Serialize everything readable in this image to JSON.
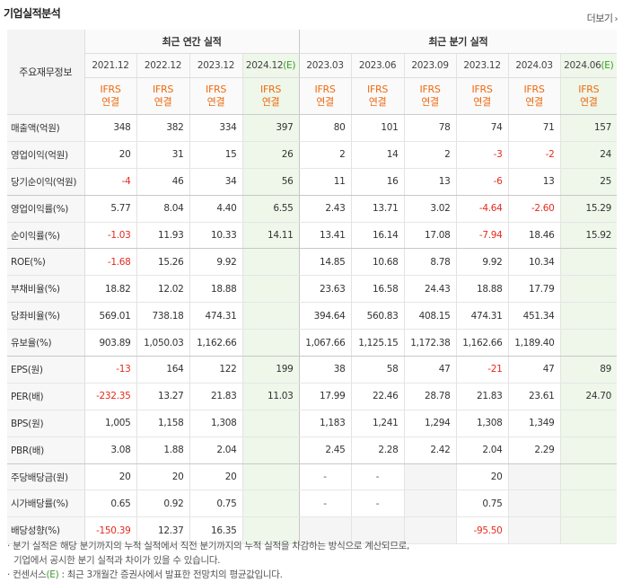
{
  "title": "기업실적분석",
  "more_label": "더보기",
  "header": {
    "row_label": "주요재무정보",
    "annual_group": "최근 연간 실적",
    "quarter_group": "최근 분기 실적",
    "annual_periods": [
      "2021.12",
      "2022.12",
      "2023.12",
      "2024.12"
    ],
    "quarter_periods": [
      "2023.03",
      "2023.06",
      "2023.09",
      "2023.12",
      "2024.03",
      "2024.06"
    ],
    "estimate_mark": "(E)",
    "ifrs_line1": "IFRS",
    "ifrs_line2": "연결"
  },
  "rows": [
    {
      "label": "매출액(억원)",
      "annual": [
        "348",
        "382",
        "334",
        "397"
      ],
      "quarter": [
        "80",
        "101",
        "78",
        "74",
        "71",
        "157"
      ]
    },
    {
      "label": "영업이익(억원)",
      "annual": [
        "20",
        "31",
        "15",
        "26"
      ],
      "quarter": [
        "2",
        "14",
        "2",
        "-3",
        "-2",
        "24"
      ]
    },
    {
      "label": "당기순이익(억원)",
      "annual": [
        "-4",
        "46",
        "34",
        "56"
      ],
      "quarter": [
        "11",
        "16",
        "13",
        "-6",
        "13",
        "25"
      ]
    },
    {
      "label": "영업이익률(%)",
      "annual": [
        "5.77",
        "8.04",
        "4.40",
        "6.55"
      ],
      "quarter": [
        "2.43",
        "13.71",
        "3.02",
        "-4.64",
        "-2.60",
        "15.29"
      ]
    },
    {
      "label": "순이익률(%)",
      "annual": [
        "-1.03",
        "11.93",
        "10.33",
        "14.11"
      ],
      "quarter": [
        "13.41",
        "16.14",
        "17.08",
        "-7.94",
        "18.46",
        "15.92"
      ]
    },
    {
      "label": "ROE(%)",
      "annual": [
        "-1.68",
        "15.26",
        "9.92",
        ""
      ],
      "quarter": [
        "14.85",
        "10.68",
        "8.78",
        "9.92",
        "10.34",
        ""
      ]
    },
    {
      "label": "부채비율(%)",
      "annual": [
        "18.82",
        "12.02",
        "18.88",
        ""
      ],
      "quarter": [
        "23.63",
        "16.58",
        "24.43",
        "18.88",
        "17.79",
        ""
      ]
    },
    {
      "label": "당좌비율(%)",
      "annual": [
        "569.01",
        "738.18",
        "474.31",
        ""
      ],
      "quarter": [
        "394.64",
        "560.83",
        "408.15",
        "474.31",
        "451.34",
        ""
      ]
    },
    {
      "label": "유보율(%)",
      "annual": [
        "903.89",
        "1,050.03",
        "1,162.66",
        ""
      ],
      "quarter": [
        "1,067.66",
        "1,125.15",
        "1,172.38",
        "1,162.66",
        "1,189.40",
        ""
      ]
    },
    {
      "label": "EPS(원)",
      "annual": [
        "-13",
        "164",
        "122",
        "199"
      ],
      "quarter": [
        "38",
        "58",
        "47",
        "-21",
        "47",
        "89"
      ]
    },
    {
      "label": "PER(배)",
      "annual": [
        "-232.35",
        "13.27",
        "21.83",
        "11.03"
      ],
      "quarter": [
        "17.99",
        "22.46",
        "28.78",
        "21.83",
        "23.61",
        "24.70"
      ]
    },
    {
      "label": "BPS(원)",
      "annual": [
        "1,005",
        "1,158",
        "1,308",
        ""
      ],
      "quarter": [
        "1,183",
        "1,241",
        "1,294",
        "1,308",
        "1,349",
        ""
      ]
    },
    {
      "label": "PBR(배)",
      "annual": [
        "3.08",
        "1.88",
        "2.04",
        ""
      ],
      "quarter": [
        "2.45",
        "2.28",
        "2.42",
        "2.04",
        "2.29",
        ""
      ]
    },
    {
      "label": "주당배당금(원)",
      "annual": [
        "20",
        "20",
        "20",
        ""
      ],
      "quarter": [
        "-",
        "-",
        "",
        "20",
        "",
        ""
      ]
    },
    {
      "label": "시가배당률(%)",
      "annual": [
        "0.65",
        "0.92",
        "0.75",
        ""
      ],
      "quarter": [
        "-",
        "-",
        "",
        "0.75",
        "",
        ""
      ]
    },
    {
      "label": "배당성향(%)",
      "annual": [
        "-150.39",
        "12.37",
        "16.35",
        ""
      ],
      "quarter": [
        "",
        "",
        "",
        "-95.50",
        "",
        ""
      ]
    }
  ],
  "notes": [
    "· 분기 실적은 해당 분기까지의 누적 실적에서 직전 분기까지의 누적 실적을 차감하는 방식으로 계산되므로,",
    "기업에서 공시한 분기 실적과 차이가 있을 수 있습니다.",
    "· 컨센서스",
    "(E)",
    " : 최근 3개월간 증권사에서 발표한 전망치의 평균값입니다."
  ],
  "colors": {
    "negative": "#e52a1e",
    "ifrs": "#ee6a10",
    "estimate_bg": "#eef7ea",
    "estimate_text": "#3a9a28"
  }
}
